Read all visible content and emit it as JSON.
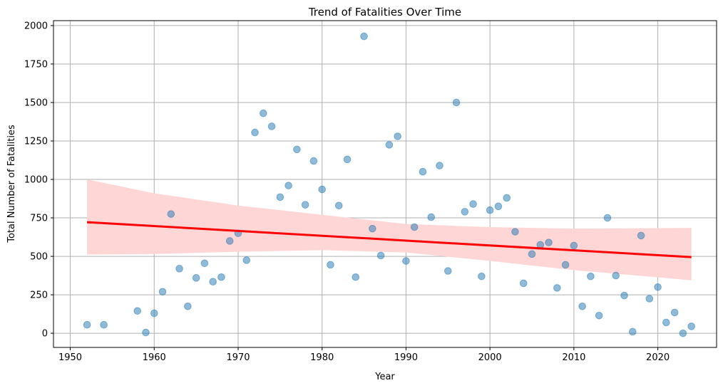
{
  "chart_data": {
    "type": "scatter",
    "title": "Trend of Fatalities Over Time",
    "xlabel": "Year",
    "ylabel": "Total Number of Fatalities",
    "xlim": [
      1948,
      2027
    ],
    "ylim": [
      -92,
      2032
    ],
    "xticks": [
      1950,
      1960,
      1970,
      1980,
      1990,
      2000,
      2010,
      2020
    ],
    "yticks": [
      0,
      250,
      500,
      750,
      1000,
      1250,
      1500,
      1750,
      2000
    ],
    "grid": true,
    "colors": {
      "points": "#1f77b4",
      "regression_line": "#ff0000",
      "confidence_band": "#ffd6d6"
    },
    "points": [
      [
        1952,
        55
      ],
      [
        1954,
        55
      ],
      [
        1958,
        145
      ],
      [
        1959,
        5
      ],
      [
        1960,
        130
      ],
      [
        1961,
        270
      ],
      [
        1962,
        775
      ],
      [
        1963,
        420
      ],
      [
        1964,
        175
      ],
      [
        1965,
        360
      ],
      [
        1966,
        455
      ],
      [
        1967,
        335
      ],
      [
        1968,
        365
      ],
      [
        1969,
        600
      ],
      [
        1970,
        650
      ],
      [
        1971,
        475
      ],
      [
        1972,
        1305
      ],
      [
        1973,
        1430
      ],
      [
        1974,
        1345
      ],
      [
        1975,
        885
      ],
      [
        1976,
        960
      ],
      [
        1977,
        1195
      ],
      [
        1978,
        835
      ],
      [
        1979,
        1120
      ],
      [
        1980,
        935
      ],
      [
        1981,
        445
      ],
      [
        1982,
        830
      ],
      [
        1983,
        1130
      ],
      [
        1984,
        365
      ],
      [
        1985,
        1930
      ],
      [
        1986,
        680
      ],
      [
        1987,
        505
      ],
      [
        1988,
        1225
      ],
      [
        1989,
        1280
      ],
      [
        1990,
        470
      ],
      [
        1991,
        690
      ],
      [
        1992,
        1050
      ],
      [
        1993,
        755
      ],
      [
        1994,
        1090
      ],
      [
        1995,
        405
      ],
      [
        1996,
        1500
      ],
      [
        1997,
        790
      ],
      [
        1998,
        840
      ],
      [
        1999,
        370
      ],
      [
        2000,
        800
      ],
      [
        2001,
        825
      ],
      [
        2002,
        880
      ],
      [
        2003,
        660
      ],
      [
        2004,
        325
      ],
      [
        2005,
        515
      ],
      [
        2006,
        575
      ],
      [
        2007,
        590
      ],
      [
        2008,
        295
      ],
      [
        2009,
        445
      ],
      [
        2010,
        570
      ],
      [
        2011,
        175
      ],
      [
        2012,
        370
      ],
      [
        2013,
        115
      ],
      [
        2014,
        750
      ],
      [
        2015,
        375
      ],
      [
        2016,
        245
      ],
      [
        2017,
        10
      ],
      [
        2018,
        635
      ],
      [
        2019,
        225
      ],
      [
        2020,
        300
      ],
      [
        2021,
        70
      ],
      [
        2022,
        135
      ],
      [
        2023,
        0
      ],
      [
        2024,
        45
      ]
    ],
    "regression": {
      "x_start": 1952,
      "y_start": 722,
      "x_end": 2024,
      "y_end": 495
    },
    "confidence_band": [
      [
        1952,
        512,
        1000
      ],
      [
        1960,
        515,
        910
      ],
      [
        1970,
        530,
        830
      ],
      [
        1980,
        540,
        770
      ],
      [
        1990,
        525,
        710
      ],
      [
        2000,
        470,
        690
      ],
      [
        2010,
        410,
        680
      ],
      [
        2024,
        345,
        685
      ]
    ]
  }
}
